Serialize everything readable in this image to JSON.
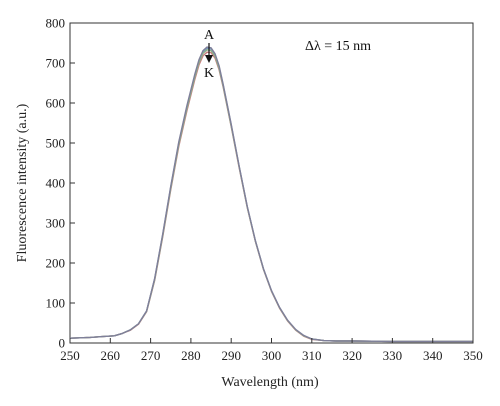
{
  "chart_data": {
    "type": "line",
    "xlabel": "Wavelength (nm)",
    "ylabel": "Fluorescence intensity (a.u.)",
    "xlim": [
      250,
      350
    ],
    "ylim": [
      0,
      800
    ],
    "xticks": [
      250,
      260,
      270,
      280,
      290,
      300,
      310,
      320,
      330,
      340,
      350
    ],
    "yticks": [
      0,
      100,
      200,
      300,
      400,
      500,
      600,
      700,
      800
    ],
    "grid": false,
    "legend": "none",
    "annotations": {
      "delta_label": "Δλ = 15 nm",
      "top_label": "A",
      "bottom_label": "K"
    },
    "x": [
      250,
      255,
      258,
      261,
      263,
      265,
      267,
      269,
      271,
      273,
      275,
      277,
      279,
      281,
      282,
      283,
      284,
      285,
      286,
      287,
      288,
      290,
      292,
      294,
      296,
      298,
      300,
      302,
      304,
      306,
      308,
      310,
      313,
      316,
      320,
      330,
      340,
      350
    ],
    "series": [
      {
        "color": "#7a9cbf",
        "values": [
          12,
          14,
          16,
          18,
          24,
          33,
          48,
          80,
          160,
          270,
          390,
          500,
          590,
          670,
          705,
          728,
          737,
          735,
          720,
          690,
          645,
          545,
          440,
          340,
          255,
          185,
          130,
          88,
          56,
          33,
          18,
          10,
          6,
          5,
          5,
          4,
          4,
          4
        ]
      },
      {
        "color": "#c98080",
        "values": [
          12,
          14,
          16,
          18,
          24,
          32,
          47,
          78,
          156,
          265,
          383,
          492,
          580,
          660,
          695,
          718,
          727,
          726,
          712,
          683,
          640,
          541,
          437,
          338,
          254,
          184,
          129,
          87,
          55,
          32,
          17,
          9,
          6,
          5,
          5,
          4,
          4,
          4
        ]
      },
      {
        "color": "#8ab08a",
        "values": [
          12,
          14,
          16,
          18,
          24,
          33,
          48,
          79,
          158,
          268,
          387,
          497,
          586,
          666,
          701,
          724,
          733,
          731,
          717,
          687,
          643,
          543,
          439,
          339,
          255,
          185,
          130,
          88,
          56,
          33,
          18,
          10,
          6,
          5,
          5,
          4,
          4,
          4
        ]
      },
      {
        "color": "#7f7f9a",
        "values": [
          12,
          14,
          16,
          18,
          24,
          33,
          48,
          80,
          161,
          272,
          392,
          503,
          593,
          673,
          708,
          731,
          740,
          738,
          723,
          693,
          647,
          547,
          441,
          341,
          256,
          186,
          131,
          89,
          57,
          34,
          19,
          10,
          6,
          5,
          5,
          4,
          4,
          4
        ]
      }
    ]
  }
}
